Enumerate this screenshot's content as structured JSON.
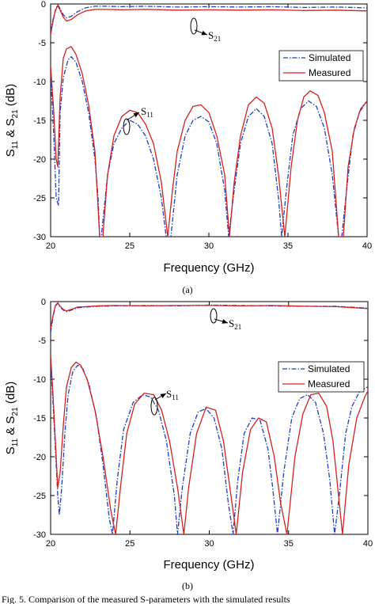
{
  "colors": {
    "simulated": "#1f3fbf",
    "measured": "#d42020",
    "axis": "#000000"
  },
  "caption": "Fig. 5. Comparison of the measured S-parameters with the simulated results",
  "chart_data": [
    {
      "type": "line",
      "panel_label": "(a)",
      "xlabel": "Frequency (GHz)",
      "ylabel": {
        "s": "S",
        "sub1": "11",
        "amp": " & S",
        "sub2": "21",
        "unit": " (dB)"
      },
      "xlim": [
        20,
        40
      ],
      "ylim": [
        -30,
        0
      ],
      "xticks": [
        20,
        25,
        30,
        35,
        40
      ],
      "yticks": [
        0,
        -5,
        -10,
        -15,
        -20,
        -25,
        -30
      ],
      "legend": {
        "position": "top-right",
        "entries": [
          "Simulated",
          "Measured"
        ]
      },
      "annotations": [
        {
          "base": "S",
          "sub": "21",
          "x": 29.2,
          "y": -1.2
        },
        {
          "base": "S",
          "sub": "11",
          "x": 24.8,
          "y": -15.2
        }
      ],
      "series": [
        {
          "name": "Simulated",
          "style": "dashdot",
          "kind": "S21",
          "x": [
            20,
            20.15,
            20.3,
            20.45,
            20.6,
            20.8,
            21.0,
            21.3,
            21.7,
            22.2,
            22.8,
            23.5,
            24.5,
            26,
            28,
            30,
            32,
            34,
            36,
            38,
            40
          ],
          "y": [
            -3.5,
            -2.0,
            -0.8,
            -0.1,
            -0.6,
            -1.4,
            -1.8,
            -1.6,
            -1.0,
            -0.5,
            -0.3,
            -0.3,
            -0.35,
            -0.3,
            -0.4,
            -0.35,
            -0.4,
            -0.35,
            -0.45,
            -0.4,
            -0.5
          ]
        },
        {
          "name": "Measured",
          "style": "solid",
          "kind": "S21",
          "x": [
            20,
            20.15,
            20.3,
            20.45,
            20.6,
            20.8,
            21.0,
            21.3,
            21.7,
            22.2,
            22.8,
            23.5,
            24.5,
            26,
            28,
            30,
            32,
            34,
            36,
            38,
            40
          ],
          "y": [
            -4.0,
            -2.2,
            -0.9,
            -0.2,
            -0.8,
            -1.7,
            -2.2,
            -2.0,
            -1.4,
            -0.9,
            -0.7,
            -0.7,
            -0.75,
            -0.7,
            -0.8,
            -0.75,
            -0.8,
            -0.75,
            -0.85,
            -0.8,
            -0.9
          ]
        },
        {
          "name": "Simulated",
          "style": "dashdot",
          "kind": "S11",
          "x": [
            20.0,
            20.2,
            20.35,
            20.5,
            20.55,
            20.6,
            20.8,
            21.1,
            21.3,
            21.6,
            22.0,
            22.4,
            22.8,
            23.0,
            23.1,
            23.2,
            23.6,
            24.0,
            24.5,
            25.0,
            25.5,
            26.0,
            26.5,
            27.0,
            27.3,
            27.5,
            27.6,
            28.0,
            28.5,
            29.0,
            29.5,
            30.0,
            30.5,
            31.0,
            31.25,
            31.6,
            32.0,
            32.5,
            33.0,
            33.5,
            34.0,
            34.4,
            34.6,
            34.9,
            35.3,
            35.8,
            36.3,
            36.8,
            37.3,
            37.8,
            38.2,
            38.4,
            38.7,
            39.1,
            39.5,
            40.0
          ],
          "y": [
            -9,
            -17,
            -25,
            -26,
            -20,
            -14,
            -9.5,
            -7.2,
            -6.8,
            -7.5,
            -10,
            -14,
            -20,
            -25,
            -30,
            -30,
            -22,
            -18,
            -16,
            -15,
            -15.5,
            -17,
            -20,
            -25,
            -30,
            -30,
            -30,
            -22,
            -17,
            -15,
            -14.5,
            -15.2,
            -18,
            -24,
            -30,
            -24,
            -18,
            -14.5,
            -13.5,
            -14.5,
            -18,
            -25,
            -30,
            -24,
            -17,
            -13.5,
            -12.5,
            -13.2,
            -16,
            -22,
            -30,
            -30,
            -24,
            -17,
            -14,
            -12.5
          ]
        },
        {
          "name": "Measured",
          "style": "solid",
          "kind": "S11",
          "x": [
            20.0,
            20.2,
            20.35,
            20.45,
            20.6,
            20.8,
            21.0,
            21.3,
            21.6,
            22.0,
            22.4,
            22.8,
            23.1,
            23.3,
            23.6,
            24.0,
            24.5,
            25.0,
            25.5,
            26.0,
            26.5,
            27.0,
            27.4,
            27.7,
            28.0,
            28.5,
            29.0,
            29.5,
            30.0,
            30.5,
            31.0,
            31.3,
            31.6,
            32.0,
            32.5,
            33.0,
            33.5,
            34.0,
            34.4,
            34.8,
            35.2,
            35.6,
            36.0,
            36.4,
            36.9,
            37.3,
            37.8,
            38.2,
            38.5,
            38.8,
            39.2,
            39.6,
            40.0
          ],
          "y": [
            -8,
            -14,
            -20,
            -21,
            -12,
            -7,
            -5.8,
            -5.5,
            -6.5,
            -9,
            -13,
            -19,
            -30,
            -30,
            -22,
            -17,
            -14.5,
            -13.7,
            -14,
            -15.5,
            -18,
            -23,
            -30,
            -24,
            -19,
            -15,
            -13.2,
            -13,
            -14,
            -17,
            -22,
            -30,
            -23,
            -17,
            -13,
            -12,
            -12.8,
            -16,
            -22,
            -30,
            -21,
            -15,
            -12,
            -11.2,
            -11.8,
            -14,
            -19,
            -30,
            -30,
            -21,
            -16,
            -13.5,
            -12.5
          ]
        }
      ]
    },
    {
      "type": "line",
      "panel_label": "(b)",
      "xlabel": "Frequency (GHz)",
      "ylabel": {
        "s": "S",
        "sub1": "11",
        "amp": " & S",
        "sub2": "21",
        "unit": " (dB)"
      },
      "xlim": [
        20,
        40
      ],
      "ylim": [
        -30,
        0
      ],
      "xticks": [
        20,
        25,
        30,
        35,
        40
      ],
      "yticks": [
        0,
        -5,
        -10,
        -15,
        -20,
        -25,
        -30
      ],
      "legend": {
        "position": "top-right",
        "entries": [
          "Simulated",
          "Measured"
        ]
      },
      "annotations": [
        {
          "base": "S",
          "sub": "21",
          "x": 30.3,
          "y": -0.6
        },
        {
          "base": "S",
          "sub": "11",
          "x": 26.5,
          "y": -12.5
        }
      ],
      "series": [
        {
          "name": "Simulated",
          "style": "dashdot",
          "kind": "S21",
          "x": [
            20,
            20.15,
            20.3,
            20.45,
            20.6,
            20.8,
            21.0,
            21.3,
            21.7,
            22.2,
            23,
            24,
            26,
            28,
            30,
            32,
            34,
            36,
            38,
            40
          ],
          "y": [
            -4.0,
            -2.0,
            -0.6,
            -0.2,
            -0.7,
            -1.1,
            -1.3,
            -1.1,
            -0.8,
            -0.7,
            -0.6,
            -0.55,
            -0.5,
            -0.55,
            -0.45,
            -0.5,
            -0.55,
            -0.6,
            -0.6,
            -0.85
          ]
        },
        {
          "name": "Measured",
          "style": "solid",
          "kind": "S21",
          "x": [
            20,
            20.15,
            20.3,
            20.45,
            20.6,
            20.8,
            21.0,
            21.3,
            21.7,
            22.2,
            23,
            24,
            26,
            28,
            30,
            32,
            34,
            36,
            38,
            40
          ],
          "y": [
            -3.5,
            -1.8,
            -0.5,
            -0.15,
            -0.6,
            -1.0,
            -1.2,
            -1.0,
            -0.7,
            -0.65,
            -0.55,
            -0.5,
            -0.55,
            -0.5,
            -0.5,
            -0.55,
            -0.5,
            -0.6,
            -0.65,
            -0.9
          ]
        },
        {
          "name": "Simulated",
          "style": "dashdot",
          "kind": "S11",
          "x": [
            20.0,
            20.15,
            20.3,
            20.45,
            20.55,
            20.7,
            20.9,
            21.1,
            21.4,
            21.7,
            22.0,
            22.4,
            22.9,
            23.3,
            23.7,
            23.9,
            24.2,
            24.6,
            25.2,
            25.8,
            26.3,
            26.8,
            27.3,
            27.8,
            28.0,
            28.3,
            28.8,
            29.3,
            29.8,
            30.3,
            30.8,
            31.2,
            31.5,
            31.8,
            32.2,
            32.7,
            33.2,
            33.7,
            34.0,
            34.3,
            34.7,
            35.2,
            35.7,
            36.2,
            36.7,
            37.2,
            37.6,
            37.9,
            38.2,
            38.6,
            39.0,
            39.5,
            40.0
          ],
          "y": [
            -8,
            -13,
            -19,
            -25,
            -27.5,
            -24,
            -17,
            -12,
            -9,
            -8.2,
            -8.5,
            -10.5,
            -15,
            -21,
            -28,
            -30,
            -23,
            -16.5,
            -13,
            -12,
            -12.3,
            -14,
            -18,
            -25,
            -30,
            -24,
            -17,
            -14.2,
            -13.8,
            -15,
            -19,
            -26,
            -30,
            -23,
            -17,
            -15,
            -15.3,
            -19,
            -24,
            -30,
            -22,
            -15,
            -12.5,
            -12,
            -13,
            -17,
            -23,
            -30,
            -25,
            -17,
            -13.5,
            -11.5,
            -11
          ]
        },
        {
          "name": "Measured",
          "style": "solid",
          "kind": "S11",
          "x": [
            20.0,
            20.15,
            20.3,
            20.45,
            20.6,
            20.8,
            21.0,
            21.3,
            21.6,
            21.9,
            22.3,
            22.8,
            23.3,
            23.8,
            24.1,
            24.4,
            24.8,
            25.3,
            25.9,
            26.5,
            27.0,
            27.5,
            28.0,
            28.4,
            28.7,
            29.2,
            29.8,
            30.4,
            30.9,
            31.3,
            31.7,
            32.1,
            32.6,
            33.1,
            33.6,
            34.1,
            34.5,
            34.9,
            35.4,
            35.9,
            36.4,
            36.9,
            37.4,
            37.8,
            38.1,
            38.4,
            38.8,
            39.3,
            39.8,
            40.0
          ],
          "y": [
            -7,
            -12,
            -18,
            -24,
            -22,
            -16,
            -11,
            -8.5,
            -7.8,
            -8.2,
            -10,
            -14,
            -20,
            -27,
            -30,
            -24,
            -17,
            -13.2,
            -11.8,
            -12,
            -14,
            -18,
            -24,
            -30,
            -24,
            -17,
            -13.6,
            -14,
            -18,
            -24,
            -30,
            -22,
            -16.5,
            -15,
            -15.5,
            -20,
            -26,
            -30,
            -20,
            -14.5,
            -12,
            -11.8,
            -13.5,
            -18,
            -24,
            -30,
            -21,
            -15,
            -12.3,
            -11.5
          ]
        }
      ]
    }
  ]
}
